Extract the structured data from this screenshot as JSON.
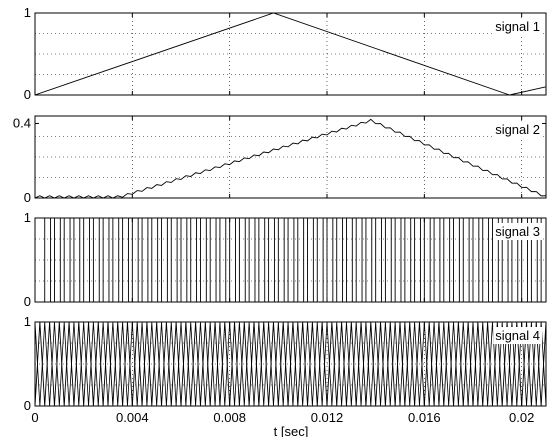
{
  "chart_data": {
    "type": "line",
    "shared_x": {
      "xlabel": "t [sec]",
      "xlim": [
        0,
        0.021
      ],
      "ticks": [
        0,
        0.004,
        0.008,
        0.012,
        0.016,
        0.02
      ],
      "tick_labels": [
        "0",
        "0.004",
        "0.008",
        "0.012",
        "0.016",
        "0.02"
      ]
    },
    "panels": [
      {
        "label": "signal 1",
        "ylim": [
          0,
          1
        ],
        "yticks": [
          0,
          1
        ],
        "ytick_labels": [
          "0",
          "1"
        ],
        "grid": true,
        "form": "triangle",
        "x": [
          0,
          0.0098,
          0.0195,
          0.021
        ],
        "y": [
          0,
          1,
          0,
          0.1
        ]
      },
      {
        "label": "signal 2",
        "ylim": [
          0,
          0.44
        ],
        "yticks": [
          0,
          0.4
        ],
        "ytick_labels": [
          "0",
          "0.4"
        ],
        "grid": true,
        "form": "rippled-envelope",
        "envelope_x": [
          0,
          0.0035,
          0.0138,
          0.021
        ],
        "envelope_y": [
          0,
          0,
          0.41,
          0
        ],
        "ripple_period": 0.0004,
        "ripple_amplitude": 0.012
      },
      {
        "label": "signal 3",
        "ylim": [
          0,
          1
        ],
        "yticks": [
          0,
          1
        ],
        "ytick_labels": [
          "0",
          "1"
        ],
        "grid": true,
        "form": "pwm",
        "period": 0.0004,
        "duty_start": 0.6,
        "duty_end": 0.6,
        "x_start": 0.0004
      },
      {
        "label": "signal 4",
        "ylim": [
          0,
          1
        ],
        "yticks": [
          0,
          1
        ],
        "ytick_labels": [
          "0",
          "1"
        ],
        "grid": true,
        "form": "dual-triangle",
        "period": 0.0004
      }
    ]
  }
}
